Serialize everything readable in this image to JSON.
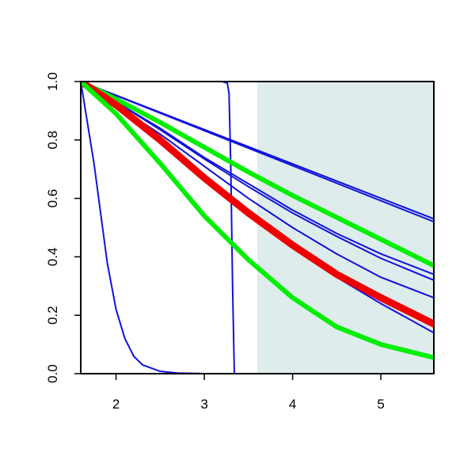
{
  "chart_data": {
    "type": "line",
    "title": "",
    "xlabel": "",
    "ylabel": "",
    "xlim": [
      1.6,
      5.6
    ],
    "ylim": [
      0.0,
      1.0
    ],
    "x_ticks": [
      2,
      3,
      4,
      5
    ],
    "x_tick_labels": [
      "2",
      "3",
      "4",
      "5"
    ],
    "y_ticks": [
      0.0,
      0.2,
      0.4,
      0.6,
      0.8,
      1.0
    ],
    "y_tick_labels": [
      "0.0",
      "0.2",
      "0.4",
      "0.6",
      "0.8",
      "1.0"
    ],
    "grid": false,
    "legend": "none",
    "shaded_region": {
      "x_from": 3.6,
      "x_to": 5.6,
      "color": "#deeceb"
    },
    "series": [
      {
        "color": "#1111dd",
        "width": 2,
        "x": [
          1.6,
          1.75,
          1.9,
          2.0,
          2.1,
          2.2,
          2.3,
          2.5,
          2.7,
          3.0,
          5.6
        ],
        "y": [
          1.0,
          0.72,
          0.38,
          0.22,
          0.12,
          0.06,
          0.03,
          0.008,
          0.002,
          0.0,
          0.0
        ]
      },
      {
        "color": "#1111dd",
        "width": 2,
        "x": [
          1.6,
          2.5,
          3.0,
          3.2,
          3.26,
          3.28,
          3.3,
          3.32,
          3.34,
          3.4,
          5.6
        ],
        "y": [
          1.0,
          1.0,
          1.0,
          1.0,
          0.995,
          0.96,
          0.7,
          0.3,
          0.0,
          0.0,
          0.0
        ]
      },
      {
        "color": "#1111dd",
        "width": 2,
        "x": [
          1.6,
          5.6
        ],
        "y": [
          1.0,
          0.53
        ]
      },
      {
        "color": "#1111dd",
        "width": 2,
        "x": [
          1.6,
          5.6
        ],
        "y": [
          1.0,
          0.52
        ]
      },
      {
        "color": "#1111dd",
        "width": 2,
        "x": [
          1.6,
          2.0,
          2.5,
          3.0,
          3.5,
          4.0,
          4.5,
          5.0,
          5.6
        ],
        "y": [
          1.0,
          0.93,
          0.84,
          0.74,
          0.65,
          0.56,
          0.48,
          0.41,
          0.34
        ]
      },
      {
        "color": "#1111dd",
        "width": 2,
        "x": [
          1.6,
          2.0,
          2.5,
          3.0,
          3.5,
          4.0,
          4.5,
          5.0,
          5.6
        ],
        "y": [
          1.0,
          0.93,
          0.835,
          0.735,
          0.64,
          0.55,
          0.47,
          0.395,
          0.32
        ]
      },
      {
        "color": "#1111dd",
        "width": 2,
        "x": [
          1.6,
          2.0,
          2.5,
          3.0,
          3.5,
          4.0,
          4.5,
          5.0,
          5.6
        ],
        "y": [
          1.0,
          0.92,
          0.82,
          0.71,
          0.6,
          0.5,
          0.41,
          0.33,
          0.26
        ]
      },
      {
        "color": "#1111dd",
        "width": 2,
        "x": [
          1.6,
          2.0,
          2.5,
          3.0,
          3.5,
          4.0,
          4.5,
          5.0,
          5.6
        ],
        "y": [
          1.0,
          0.91,
          0.79,
          0.66,
          0.54,
          0.43,
          0.33,
          0.24,
          0.14
        ]
      },
      {
        "color": "#00ee00",
        "width": 6,
        "x": [
          1.6,
          2.0,
          2.5,
          3.0,
          3.5,
          4.0,
          4.5,
          5.0,
          5.6
        ],
        "y": [
          1.0,
          0.94,
          0.86,
          0.775,
          0.69,
          0.61,
          0.535,
          0.46,
          0.37
        ]
      },
      {
        "color": "#ee0000",
        "width": 9,
        "x": [
          1.6,
          2.0,
          2.5,
          3.0,
          3.5,
          4.0,
          4.5,
          5.0,
          5.6
        ],
        "y": [
          1.0,
          0.92,
          0.8,
          0.67,
          0.55,
          0.44,
          0.34,
          0.26,
          0.17
        ]
      },
      {
        "color": "#00ee00",
        "width": 6,
        "x": [
          1.6,
          2.0,
          2.5,
          3.0,
          3.5,
          4.0,
          4.5,
          5.0,
          5.6
        ],
        "y": [
          1.0,
          0.89,
          0.72,
          0.54,
          0.39,
          0.26,
          0.16,
          0.1,
          0.055
        ]
      }
    ]
  }
}
